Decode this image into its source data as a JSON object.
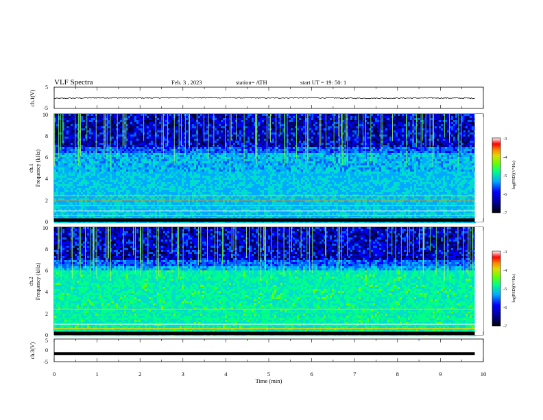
{
  "header": {
    "title": "VLF  Spectra",
    "date": "Feb. 3  , 2023",
    "station": "station= ATH",
    "start": "start  UT  =    19: 50: 1"
  },
  "chart_data": [
    {
      "type": "line",
      "panel": "ch1-waveform",
      "ylabel": "ch.1(V)",
      "ylim": [
        -5,
        5
      ],
      "yticks": [
        "5",
        "-5"
      ],
      "xlim": [
        0,
        10
      ],
      "series": [
        {
          "x": [
            0,
            1,
            2,
            3,
            4,
            5,
            6,
            7,
            8,
            9,
            9.8
          ],
          "values": [
            -0.6,
            0.0,
            -0.2,
            0.1,
            0.0,
            -0.2,
            0.0,
            -0.4,
            -0.3,
            -0.2,
            -0.4
          ]
        }
      ]
    },
    {
      "type": "heatmap",
      "panel": "ch1-spectrogram",
      "ylabel_top": "ch.1",
      "ylabel": "Frequency  (kHz)",
      "ylim": [
        0,
        10
      ],
      "yticks": [
        "0",
        "2",
        "4",
        "6",
        "8",
        "10"
      ],
      "xlim": [
        0,
        10
      ],
      "colorbar": {
        "label": "log(PSD)(V²/Hz)",
        "range": [
          -7,
          -3
        ],
        "ticks": [
          "-3",
          "-4",
          "-5",
          "-6",
          "-7"
        ]
      }
    },
    {
      "type": "heatmap",
      "panel": "ch2-spectrogram",
      "ylabel_top": "ch.2",
      "ylabel": "Frequency  (kHz)",
      "ylim": [
        0,
        10
      ],
      "yticks": [
        "0",
        "2",
        "4",
        "6",
        "8",
        "10"
      ],
      "xlim": [
        0,
        10
      ],
      "colorbar": {
        "label": "log(PSD)(V²/Hz)",
        "range": [
          -7,
          -3
        ],
        "ticks": [
          "-3",
          "-4",
          "-5",
          "-6",
          "-7"
        ]
      }
    },
    {
      "type": "line",
      "panel": "ch3-waveform",
      "ylabel": "ch.3(V)",
      "ylim": [
        -5,
        5
      ],
      "yticks": [
        "5",
        "0",
        "-5"
      ],
      "xlim": [
        0,
        10
      ],
      "series": [
        {
          "x": [
            0,
            9.8
          ],
          "values": [
            -1.5,
            -1.5
          ]
        }
      ]
    }
  ],
  "xaxis": {
    "label": "Time  (min)",
    "ticks": [
      "0",
      "1",
      "2",
      "3",
      "4",
      "5",
      "6",
      "7",
      "8",
      "9",
      "10"
    ]
  }
}
